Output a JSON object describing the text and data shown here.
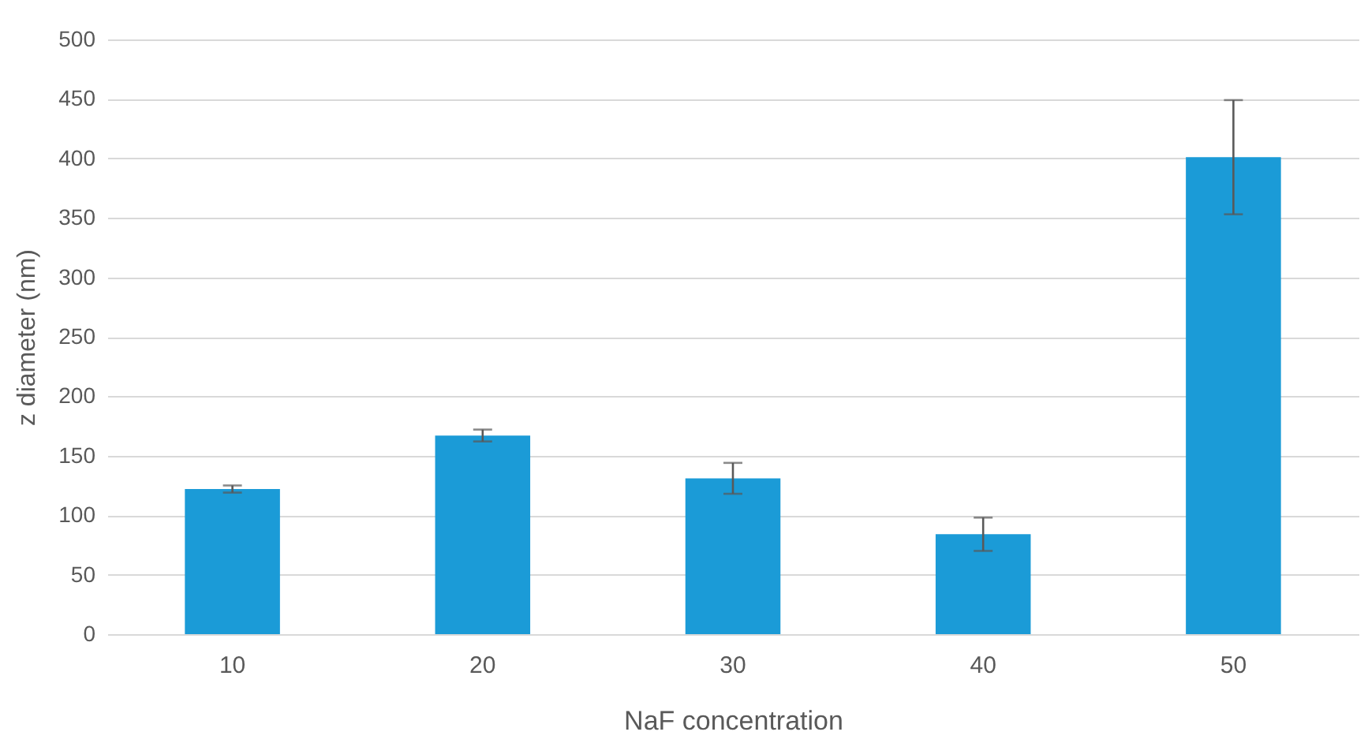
{
  "chart_data": {
    "type": "bar",
    "xlabel": "NaF concentration",
    "ylabel": "z diameter (nm)",
    "categories": [
      "10",
      "20",
      "30",
      "40",
      "50"
    ],
    "values": [
      122,
      167,
      131,
      84,
      401
    ],
    "errors": [
      3,
      5,
      13,
      14,
      48
    ],
    "color": "#1b9bd7",
    "ylim": [
      0,
      500
    ],
    "yticks": [
      0,
      50,
      100,
      150,
      200,
      250,
      300,
      350,
      400,
      450,
      500
    ],
    "grid": "y"
  }
}
